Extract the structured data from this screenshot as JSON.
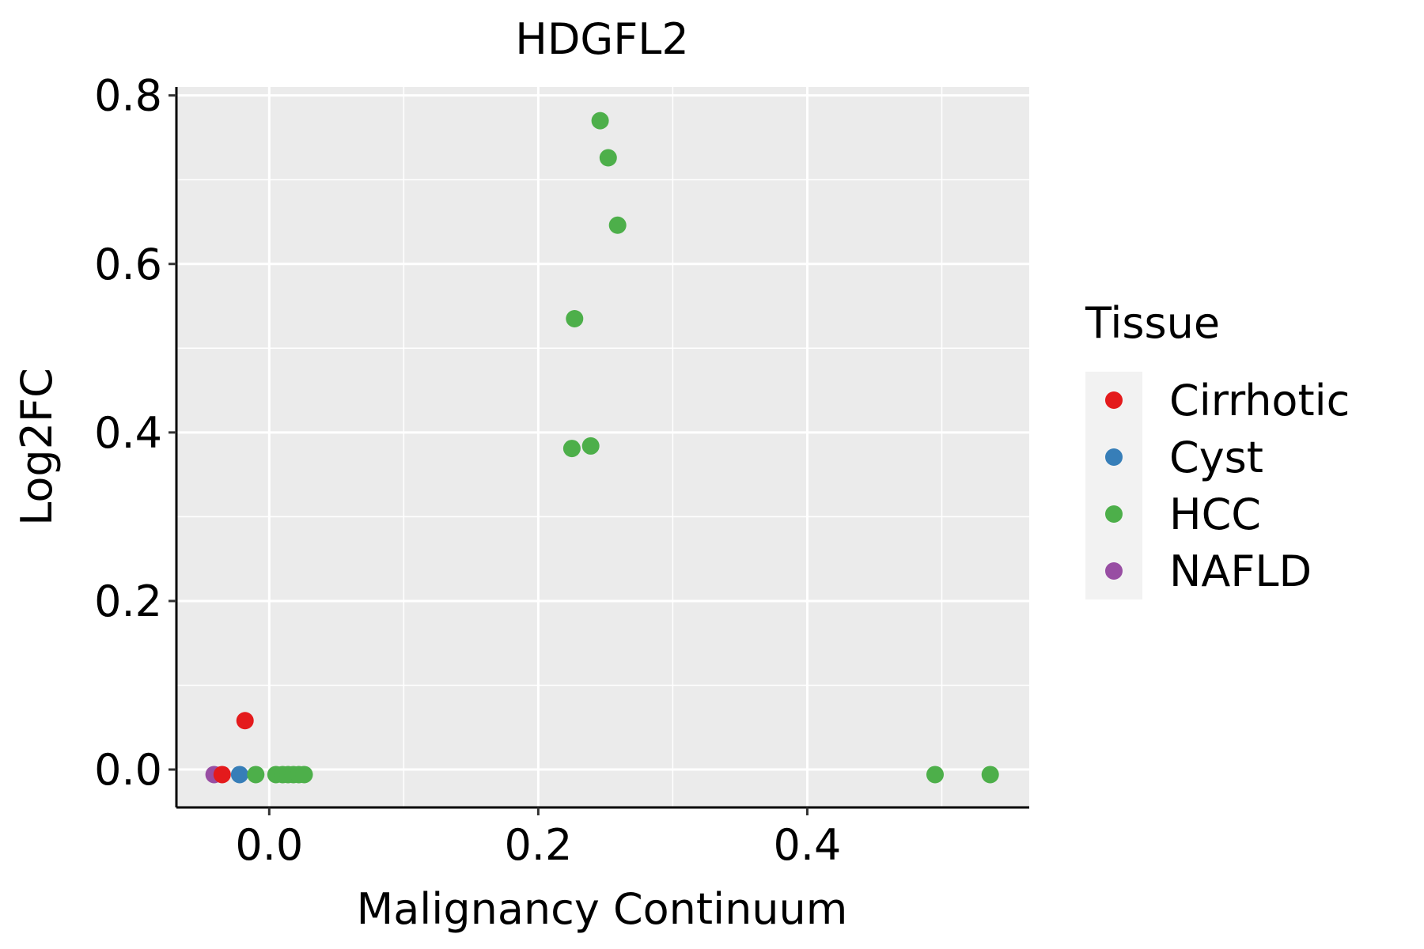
{
  "chart_data": {
    "type": "scatter",
    "title": "HDGFL2",
    "xlabel": "Malignancy Continuum",
    "ylabel": "Log2FC",
    "xlim": [
      -0.069,
      0.565
    ],
    "ylim": [
      -0.045,
      0.81
    ],
    "xticks": [
      {
        "value": 0.0,
        "label": "0.0"
      },
      {
        "value": 0.2,
        "label": "0.2"
      },
      {
        "value": 0.4,
        "label": "0.4"
      }
    ],
    "yticks": [
      {
        "value": 0.0,
        "label": "0.0"
      },
      {
        "value": 0.2,
        "label": "0.2"
      },
      {
        "value": 0.4,
        "label": "0.4"
      },
      {
        "value": 0.6,
        "label": "0.6"
      },
      {
        "value": 0.8,
        "label": "0.8"
      }
    ],
    "grid": true,
    "legend": {
      "title": "Tissue",
      "position": "right",
      "entries": [
        {
          "name": "Cirrhotic",
          "color": "#E41A1C"
        },
        {
          "name": "Cyst",
          "color": "#377EB8"
        },
        {
          "name": "HCC",
          "color": "#4DAF4A"
        },
        {
          "name": "NAFLD",
          "color": "#984EA3"
        }
      ]
    },
    "series": [
      {
        "name": "NAFLD",
        "color": "#984EA3",
        "points": [
          {
            "x": -0.041,
            "y": -0.006
          }
        ]
      },
      {
        "name": "Cirrhotic",
        "color": "#E41A1C",
        "points": [
          {
            "x": -0.035,
            "y": -0.006
          },
          {
            "x": -0.018,
            "y": 0.058
          }
        ]
      },
      {
        "name": "Cyst",
        "color": "#377EB8",
        "points": [
          {
            "x": -0.022,
            "y": -0.006
          }
        ]
      },
      {
        "name": "HCC",
        "color": "#4DAF4A",
        "points": [
          {
            "x": -0.01,
            "y": -0.006
          },
          {
            "x": 0.005,
            "y": -0.006
          },
          {
            "x": 0.01,
            "y": -0.006
          },
          {
            "x": 0.014,
            "y": -0.006
          },
          {
            "x": 0.018,
            "y": -0.006
          },
          {
            "x": 0.022,
            "y": -0.006
          },
          {
            "x": 0.026,
            "y": -0.006
          },
          {
            "x": 0.225,
            "y": 0.381
          },
          {
            "x": 0.227,
            "y": 0.535
          },
          {
            "x": 0.239,
            "y": 0.384
          },
          {
            "x": 0.246,
            "y": 0.77
          },
          {
            "x": 0.252,
            "y": 0.726
          },
          {
            "x": 0.259,
            "y": 0.646
          },
          {
            "x": 0.495,
            "y": -0.006
          },
          {
            "x": 0.536,
            "y": -0.006
          }
        ]
      }
    ]
  }
}
